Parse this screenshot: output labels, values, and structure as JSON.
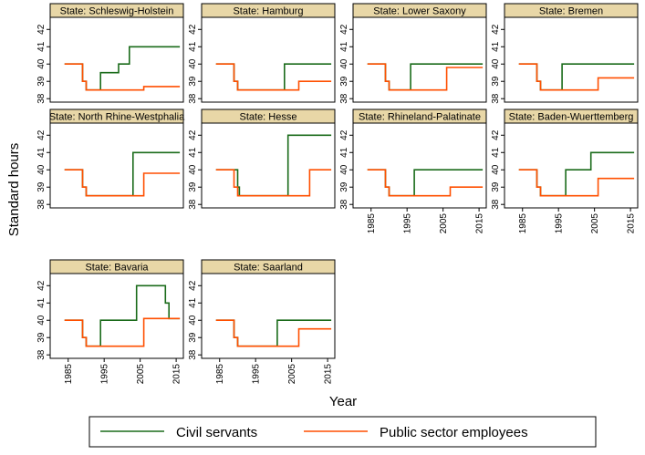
{
  "chart_data": {
    "type": "line",
    "subtype": "step",
    "ylabel": "Standard hours",
    "xlabel": "Year",
    "xlim": [
      1980,
      2017
    ],
    "ylim": [
      37.8,
      42.7
    ],
    "xticks": [
      1985,
      1995,
      2005,
      2015
    ],
    "yticks": [
      38,
      39,
      40,
      41,
      42
    ],
    "grid": false,
    "legend_position": "bottom",
    "colors": {
      "civil": "#1a6b1a",
      "public": "#ff4f00",
      "strip": "#e8d7a7"
    },
    "legend": [
      "Civil servants",
      "Public sector employees"
    ],
    "panels": [
      {
        "title": "State: Schleswig-Holstein",
        "civil": [
          [
            1984,
            40
          ],
          [
            1989,
            40
          ],
          [
            1989,
            39
          ],
          [
            1990,
            39
          ],
          [
            1990,
            38.5
          ],
          [
            1994,
            38.5
          ],
          [
            1994,
            39.5
          ],
          [
            1999,
            39.5
          ],
          [
            1999,
            40
          ],
          [
            2002,
            40
          ],
          [
            2002,
            41
          ],
          [
            2016,
            41
          ]
        ],
        "public": [
          [
            1984,
            40
          ],
          [
            1989,
            40
          ],
          [
            1989,
            39
          ],
          [
            1990,
            39
          ],
          [
            1990,
            38.5
          ],
          [
            2006,
            38.5
          ],
          [
            2006,
            38.7
          ],
          [
            2016,
            38.7
          ]
        ]
      },
      {
        "title": "State: Hamburg",
        "civil": [
          [
            1984,
            40
          ],
          [
            1989,
            40
          ],
          [
            1989,
            39
          ],
          [
            1990,
            39
          ],
          [
            1990,
            38.5
          ],
          [
            2003,
            38.5
          ],
          [
            2003,
            40
          ],
          [
            2016,
            40
          ]
        ],
        "public": [
          [
            1984,
            40
          ],
          [
            1989,
            40
          ],
          [
            1989,
            39
          ],
          [
            1990,
            39
          ],
          [
            1990,
            38.5
          ],
          [
            2007,
            38.5
          ],
          [
            2007,
            39
          ],
          [
            2016,
            39
          ]
        ]
      },
      {
        "title": "State: Lower Saxony",
        "civil": [
          [
            1984,
            40
          ],
          [
            1989,
            40
          ],
          [
            1989,
            39
          ],
          [
            1990,
            39
          ],
          [
            1990,
            38.5
          ],
          [
            1996,
            38.5
          ],
          [
            1996,
            40
          ],
          [
            2016,
            40
          ]
        ],
        "public": [
          [
            1984,
            40
          ],
          [
            1989,
            40
          ],
          [
            1989,
            39
          ],
          [
            1990,
            39
          ],
          [
            1990,
            38.5
          ],
          [
            2006,
            38.5
          ],
          [
            2006,
            39.8
          ],
          [
            2016,
            39.8
          ]
        ]
      },
      {
        "title": "State: Bremen",
        "civil": [
          [
            1984,
            40
          ],
          [
            1989,
            40
          ],
          [
            1989,
            39
          ],
          [
            1990,
            39
          ],
          [
            1990,
            38.5
          ],
          [
            1996,
            38.5
          ],
          [
            1996,
            40
          ],
          [
            2016,
            40
          ]
        ],
        "public": [
          [
            1984,
            40
          ],
          [
            1989,
            40
          ],
          [
            1989,
            39
          ],
          [
            1990,
            39
          ],
          [
            1990,
            38.5
          ],
          [
            2006,
            38.5
          ],
          [
            2006,
            39.2
          ],
          [
            2016,
            39.2
          ]
        ]
      },
      {
        "title": "State: North Rhine-Westphalia",
        "civil": [
          [
            1984,
            40
          ],
          [
            1989,
            40
          ],
          [
            1989,
            39
          ],
          [
            1990,
            39
          ],
          [
            1990,
            38.5
          ],
          [
            2003,
            38.5
          ],
          [
            2003,
            41
          ],
          [
            2016,
            41
          ]
        ],
        "public": [
          [
            1984,
            40
          ],
          [
            1989,
            40
          ],
          [
            1989,
            39
          ],
          [
            1990,
            39
          ],
          [
            1990,
            38.5
          ],
          [
            2006,
            38.5
          ],
          [
            2006,
            39.8
          ],
          [
            2016,
            39.8
          ]
        ]
      },
      {
        "title": "State: Hesse",
        "civil": [
          [
            1984,
            40
          ],
          [
            1990,
            40
          ],
          [
            1990,
            39
          ],
          [
            1990.5,
            39
          ],
          [
            1990.5,
            38.5
          ],
          [
            2004,
            38.5
          ],
          [
            2004,
            42
          ],
          [
            2016,
            42
          ]
        ],
        "public": [
          [
            1984,
            40
          ],
          [
            1989,
            40
          ],
          [
            1989,
            39
          ],
          [
            1990,
            39
          ],
          [
            1990,
            38.5
          ],
          [
            2010,
            38.5
          ],
          [
            2010,
            40
          ],
          [
            2016,
            40
          ]
        ]
      },
      {
        "title": "State: Rhineland-Palatinate",
        "civil": [
          [
            1984,
            40
          ],
          [
            1989,
            40
          ],
          [
            1989,
            39
          ],
          [
            1990,
            39
          ],
          [
            1990,
            38.5
          ],
          [
            1997,
            38.5
          ],
          [
            1997,
            40
          ],
          [
            2016,
            40
          ]
        ],
        "public": [
          [
            1984,
            40
          ],
          [
            1989,
            40
          ],
          [
            1989,
            39
          ],
          [
            1990,
            39
          ],
          [
            1990,
            38.5
          ],
          [
            2007,
            38.5
          ],
          [
            2007,
            39
          ],
          [
            2016,
            39
          ]
        ]
      },
      {
        "title": "State: Baden-Wuerttemberg",
        "civil": [
          [
            1984,
            40
          ],
          [
            1989,
            40
          ],
          [
            1989,
            39
          ],
          [
            1990,
            39
          ],
          [
            1990,
            38.5
          ],
          [
            1997,
            38.5
          ],
          [
            1997,
            40
          ],
          [
            2004,
            40
          ],
          [
            2004,
            41
          ],
          [
            2016,
            41
          ]
        ],
        "public": [
          [
            1984,
            40
          ],
          [
            1989,
            40
          ],
          [
            1989,
            39
          ],
          [
            1990,
            39
          ],
          [
            1990,
            38.5
          ],
          [
            2006,
            38.5
          ],
          [
            2006,
            39.5
          ],
          [
            2016,
            39.5
          ]
        ]
      },
      {
        "title": "State: Bavaria",
        "civil": [
          [
            1984,
            40
          ],
          [
            1989,
            40
          ],
          [
            1989,
            39
          ],
          [
            1990,
            39
          ],
          [
            1990,
            38.5
          ],
          [
            1994,
            38.5
          ],
          [
            1994,
            40
          ],
          [
            2004,
            40
          ],
          [
            2004,
            42
          ],
          [
            2012,
            42
          ],
          [
            2012,
            41
          ],
          [
            2013,
            41
          ],
          [
            2013,
            40.1
          ],
          [
            2016,
            40.1
          ]
        ],
        "public": [
          [
            1984,
            40
          ],
          [
            1989,
            40
          ],
          [
            1989,
            39
          ],
          [
            1990,
            39
          ],
          [
            1990,
            38.5
          ],
          [
            2006,
            38.5
          ],
          [
            2006,
            40.1
          ],
          [
            2016,
            40.1
          ]
        ]
      },
      {
        "title": "State: Saarland",
        "civil": [
          [
            1984,
            40
          ],
          [
            1989,
            40
          ],
          [
            1989,
            39
          ],
          [
            1990,
            39
          ],
          [
            1990,
            38.5
          ],
          [
            2001,
            38.5
          ],
          [
            2001,
            40
          ],
          [
            2016,
            40
          ]
        ],
        "public": [
          [
            1984,
            40
          ],
          [
            1989,
            40
          ],
          [
            1989,
            39
          ],
          [
            1990,
            39
          ],
          [
            1990,
            38.5
          ],
          [
            2007,
            38.5
          ],
          [
            2007,
            39.5
          ],
          [
            2016,
            39.5
          ]
        ]
      }
    ]
  }
}
